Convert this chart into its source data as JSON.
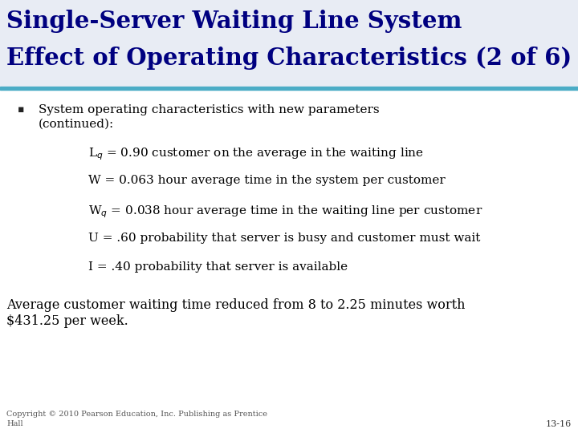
{
  "title_line1": "Single-Server Waiting Line System",
  "title_line2": "Effect of Operating Characteristics (2 of 6)",
  "title_bg_color": "#dde3f0",
  "title_text_color": "#000080",
  "header_bar_color": "#4bacc6",
  "body_bg_color": "#ffffff",
  "slide_bg_color": "#e8ecf4",
  "bullet_text_line1": "System operating characteristics with new parameters",
  "bullet_text_line2": "(continued):",
  "sub_bullets": [
    "L$_q$ = 0.90 customer on the average in the waiting line",
    "W = 0.063 hour average time in the system per customer",
    "W$_q$ = 0.038 hour average time in the waiting line per customer",
    "U = .60 probability that server is busy and customer must wait",
    "I = .40 probability that server is available"
  ],
  "bottom_text_line1": "Average customer waiting time reduced from 8 to 2.25 minutes worth",
  "bottom_text_line2": "$431.25 per week.",
  "copyright_text": "Copyright © 2010 Pearson Education, Inc. Publishing as Prentice\nHall",
  "page_number": "13-16",
  "watermark_color": "#d8dce8"
}
